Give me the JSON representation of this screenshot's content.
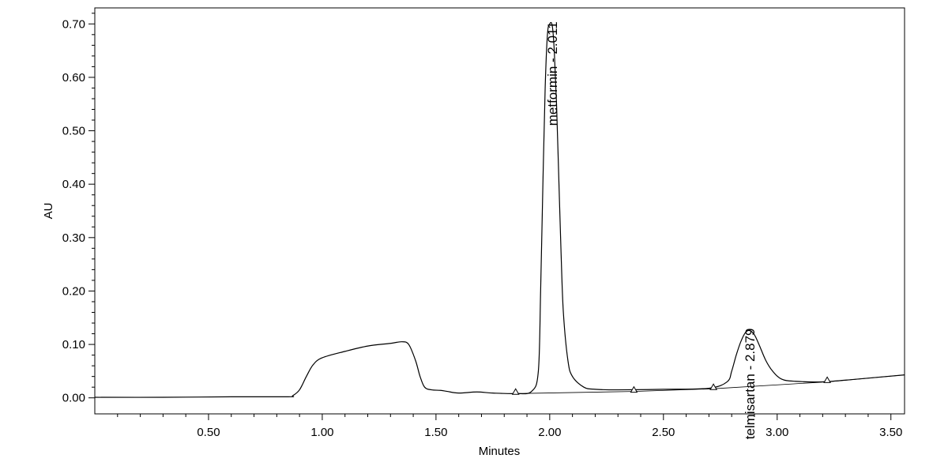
{
  "chart_data": {
    "type": "line",
    "xlabel": "Minutes",
    "ylabel": "AU",
    "xlim": [
      0.0,
      3.56
    ],
    "ylim": [
      -0.03,
      0.73
    ],
    "grid": false,
    "x_ticks": [
      {
        "value": 0.5,
        "label": "0.50"
      },
      {
        "value": 1.0,
        "label": "1.00"
      },
      {
        "value": 1.5,
        "label": "1.50"
      },
      {
        "value": 2.0,
        "label": "2.00"
      },
      {
        "value": 2.5,
        "label": "2.50"
      },
      {
        "value": 3.0,
        "label": "3.00"
      },
      {
        "value": 3.5,
        "label": "3.50"
      }
    ],
    "y_ticks": [
      {
        "value": 0.0,
        "label": "0.00"
      },
      {
        "value": 0.1,
        "label": "0.10"
      },
      {
        "value": 0.2,
        "label": "0.20"
      },
      {
        "value": 0.3,
        "label": "0.30"
      },
      {
        "value": 0.4,
        "label": "0.40"
      },
      {
        "value": 0.5,
        "label": "0.50"
      },
      {
        "value": 0.6,
        "label": "0.60"
      },
      {
        "value": 0.7,
        "label": "0.70"
      }
    ],
    "series": [
      {
        "x": [
          0.0,
          0.3,
          0.6,
          0.85,
          0.87,
          0.9,
          0.93,
          0.96,
          1.0,
          1.1,
          1.2,
          1.3,
          1.35,
          1.38,
          1.41,
          1.43,
          1.45,
          1.48,
          1.52,
          1.55,
          1.6,
          1.68,
          1.75,
          1.85,
          1.92,
          1.95,
          1.96,
          1.97,
          1.98,
          1.99,
          2.0,
          2.011,
          2.02,
          2.03,
          2.04,
          2.05,
          2.06,
          2.08,
          2.1,
          2.15,
          2.2,
          2.3,
          2.5,
          2.7,
          2.78,
          2.8,
          2.82,
          2.84,
          2.86,
          2.879,
          2.9,
          2.92,
          2.95,
          2.98,
          3.02,
          3.08,
          3.2,
          3.35,
          3.56
        ],
        "y": [
          0.001,
          0.001,
          0.002,
          0.002,
          0.004,
          0.015,
          0.04,
          0.062,
          0.075,
          0.087,
          0.097,
          0.102,
          0.105,
          0.1,
          0.07,
          0.04,
          0.02,
          0.015,
          0.014,
          0.012,
          0.009,
          0.011,
          0.009,
          0.008,
          0.012,
          0.05,
          0.2,
          0.4,
          0.58,
          0.68,
          0.7,
          0.697,
          0.65,
          0.55,
          0.41,
          0.27,
          0.16,
          0.07,
          0.04,
          0.02,
          0.016,
          0.015,
          0.016,
          0.018,
          0.03,
          0.05,
          0.08,
          0.105,
          0.122,
          0.126,
          0.118,
          0.1,
          0.07,
          0.05,
          0.035,
          0.031,
          0.03,
          0.035,
          0.043
        ]
      }
    ],
    "baseline": {
      "x": [
        1.85,
        2.37,
        2.72,
        3.22
      ],
      "y": [
        0.008,
        0.012,
        0.017,
        0.03
      ]
    },
    "markers": {
      "x": [
        1.85,
        2.37,
        2.72,
        3.22
      ],
      "y": [
        0.008,
        0.012,
        0.017,
        0.03
      ]
    },
    "peaks": [
      {
        "label": "metformin - 2.011",
        "x": 2.011,
        "y": 0.7
      },
      {
        "label": "telmisartan - 2.879",
        "x": 2.879,
        "y": 0.126
      }
    ]
  }
}
